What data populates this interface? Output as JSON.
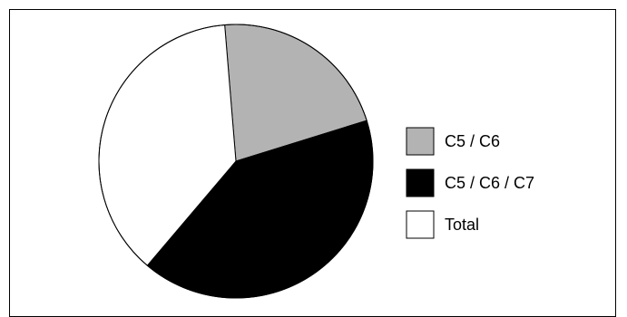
{
  "chart_data": {
    "type": "pie",
    "slices": [
      {
        "label": "C5 / C6",
        "value": 21.5,
        "color": "#b3b3b3"
      },
      {
        "label": "C5 / C6 / C7",
        "value": 41,
        "color": "#000000"
      },
      {
        "label": "Total",
        "value": 37.5,
        "color": "#ffffff"
      }
    ],
    "start_angle_deg": -4.7,
    "direction": "clockwise",
    "legend": {
      "placement": "right",
      "entries": [
        "C5 / C6",
        "C5 / C6 / C7",
        "Total"
      ]
    },
    "title": ""
  }
}
